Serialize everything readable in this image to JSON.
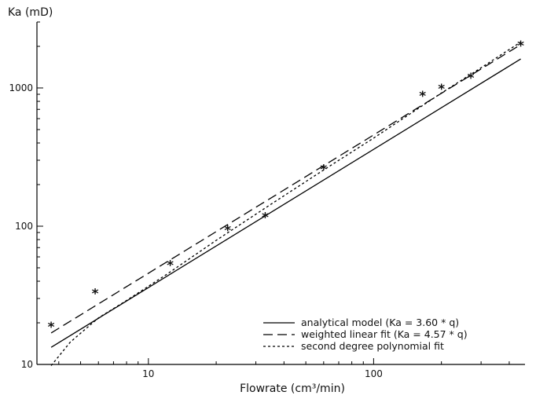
{
  "chart_data": {
    "type": "line",
    "title": "",
    "xlabel": "Flowrate (cm³/min)",
    "ylabel": "Ka (mD)",
    "xscale": "log",
    "yscale": "log",
    "xlim": [
      3.2,
      470
    ],
    "ylim": [
      10,
      3000
    ],
    "x_tick_labels": [
      "10",
      "100"
    ],
    "y_tick_labels": [
      "10",
      "100",
      "1000"
    ],
    "grid": false,
    "legend_position": "bottom-right",
    "series": [
      {
        "name": "analytical model (Ka = 3.60 * q)",
        "style": "solid",
        "type": "line",
        "x": [
          3.7,
          450
        ],
        "y": [
          13.3,
          1620
        ]
      },
      {
        "name": "weighted linear fit (Ka = 4.57 * q)",
        "style": "dashed",
        "type": "line",
        "x": [
          3.7,
          450
        ],
        "y": [
          16.9,
          2057
        ]
      },
      {
        "name": "second degree polynomial fit",
        "style": "dotted",
        "type": "line",
        "x": [
          3.7,
          4.5,
          6,
          8,
          12,
          20,
          35,
          60,
          100,
          200,
          300,
          450
        ],
        "y": [
          9.8,
          14.5,
          21.7,
          29,
          44.6,
          79,
          144,
          255,
          434,
          920,
          1400,
          2150
        ]
      },
      {
        "name": "",
        "style": "asterisk",
        "type": "scatter",
        "x": [
          3.7,
          5.8,
          12.5,
          22.5,
          33,
          60,
          165,
          200,
          270,
          450
        ],
        "y": [
          19,
          33,
          53,
          95,
          118,
          262,
          890,
          1000,
          1200,
          2050
        ]
      }
    ]
  }
}
